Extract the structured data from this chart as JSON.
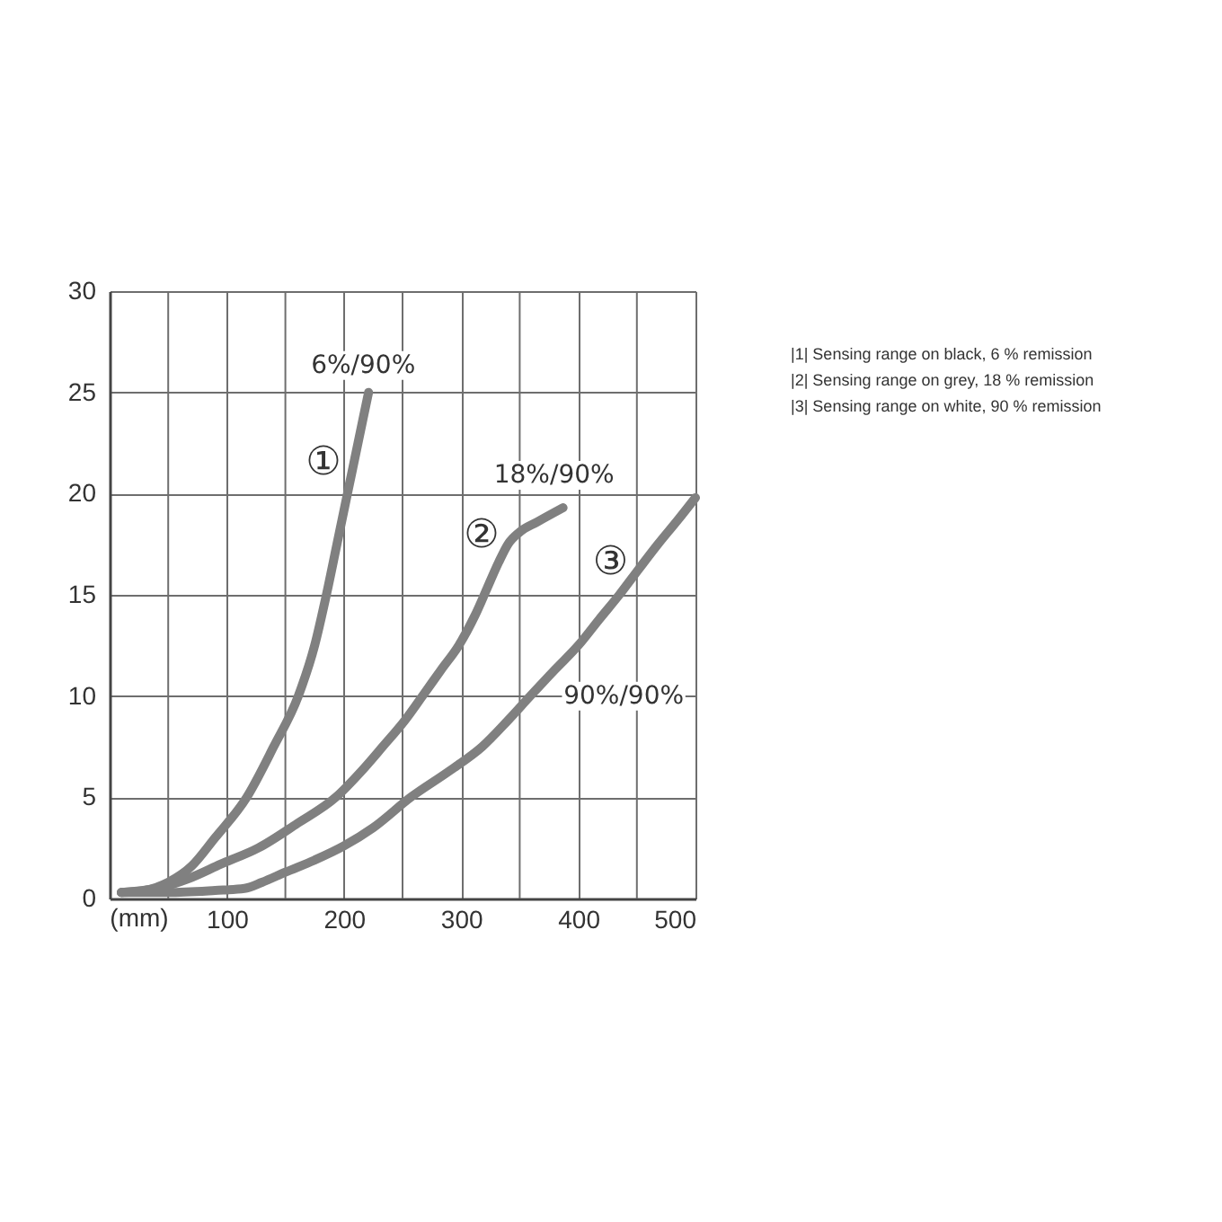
{
  "chart_data": {
    "type": "line",
    "xlabel": "(mm)",
    "xlim": [
      0,
      500
    ],
    "ylim": [
      0,
      30
    ],
    "xticks": [
      {
        "value": 50,
        "label": null
      },
      100,
      {
        "value": 150,
        "label": null
      },
      200,
      {
        "value": 250,
        "label": null
      },
      300,
      {
        "value": 350,
        "label": null
      },
      400,
      {
        "value": 450,
        "label": null
      },
      500
    ],
    "yticks": [
      0,
      5,
      10,
      15,
      20,
      25,
      30
    ],
    "grid": true,
    "line_style": "solid",
    "series": [
      {
        "name": "6%/90%",
        "color": "#808080",
        "x": [
          10,
          30,
          50,
          70,
          90,
          117,
          140,
          161,
          175,
          185,
          194,
          203,
          212,
          221
        ],
        "values": [
          0.3,
          0.4,
          0.8,
          1.6,
          3.0,
          5,
          7.5,
          10,
          12.5,
          15,
          17.5,
          20,
          22.5,
          25
        ]
      },
      {
        "name": "18%/90%",
        "color": "#808080",
        "x": [
          10,
          40,
          68,
          95,
          127,
          160,
          193,
          215,
          233,
          252,
          267,
          283,
          298,
          312,
          322,
          332,
          340,
          350,
          365,
          387
        ],
        "values": [
          0.3,
          0.5,
          1,
          1.7,
          2.5,
          3.7,
          5,
          6.3,
          7.5,
          8.8,
          10,
          11.3,
          12.5,
          14,
          15.3,
          16.6,
          17.5,
          18.1,
          18.6,
          19.3
        ]
      },
      {
        "name": "90%/90%",
        "color": "#808080",
        "x": [
          10,
          50,
          90,
          115,
          130,
          150,
          175,
          200,
          225,
          257,
          290,
          318,
          340,
          359,
          380,
          400,
          418,
          435,
          452,
          468,
          485,
          500
        ],
        "values": [
          0.3,
          0.3,
          0.4,
          0.5,
          0.8,
          1.3,
          1.9,
          2.6,
          3.5,
          5,
          6.3,
          7.5,
          8.8,
          10,
          11.3,
          12.5,
          13.8,
          15,
          16.3,
          17.5,
          18.7,
          19.8
        ]
      }
    ],
    "annotations": [
      {
        "text": "①",
        "x": 207,
        "y": 21.2
      },
      {
        "text": "②",
        "x": 342,
        "y": 17.6
      },
      {
        "text": "③",
        "x": 452,
        "y": 16.3
      },
      "|1| Sensing range on black, 6 % remission",
      "|2| Sensing range on grey, 18 % remission",
      "|3| Sensing range on white, 90 % remission"
    ]
  }
}
